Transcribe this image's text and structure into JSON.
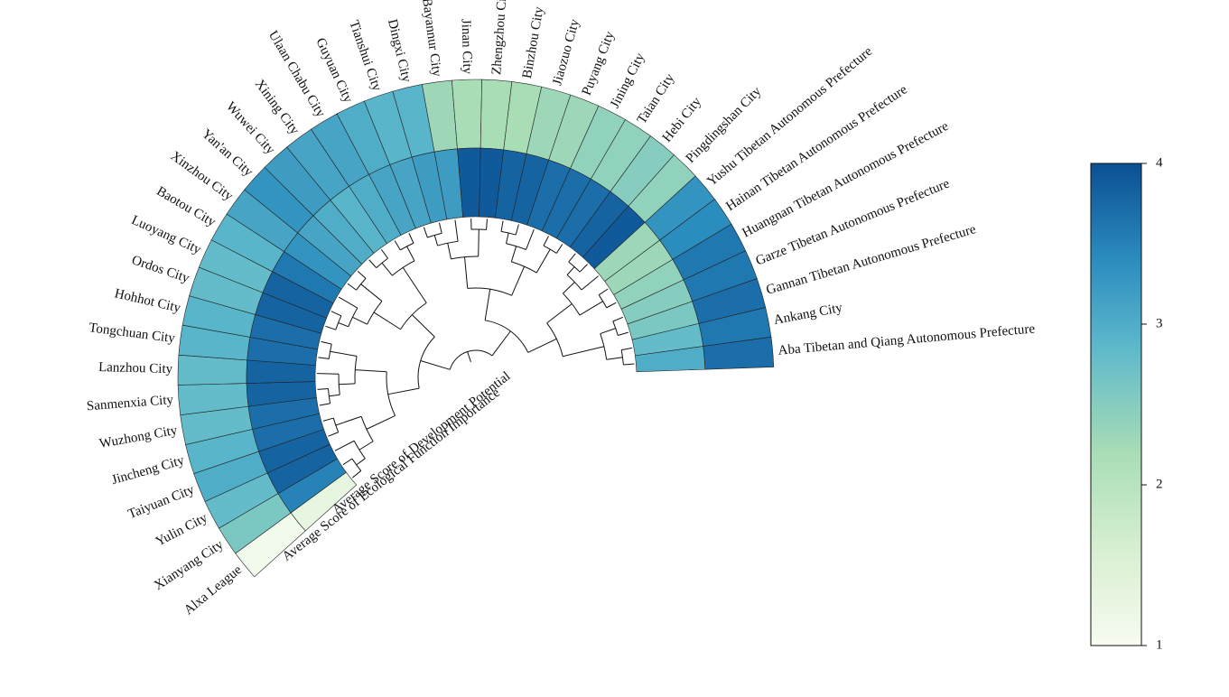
{
  "chart_data": {
    "type": "heatmap",
    "subtype": "circular-dendrogram-heatmap",
    "series": [
      {
        "name": "Average Score of Ecological Function Importance",
        "ring": "outer"
      },
      {
        "name": "Average Score of Development Potential",
        "ring": "inner"
      }
    ],
    "categories": [
      "Alxa League",
      "Xianyang City",
      "Yulin City",
      "Taiyuan City",
      "Jincheng City",
      "Wuzhong City",
      "Sanmenxia City",
      "Lanzhou City",
      "Tongchuan City",
      "Hohhot City",
      "Ordos City",
      "Luoyang City",
      "Baotou City",
      "Xinzhou City",
      "Yan'an City",
      "Wuwei City",
      "Xining City",
      "Ulaan Chabu City",
      "Guyuan City",
      "Tianshui City",
      "Dingxi City",
      "Bayannur City",
      "Jinan City",
      "Zhengzhou City",
      "Binzhou City",
      "Jiaozuo City",
      "Puyang City",
      "Jining City",
      "Taian City",
      "Hebi City",
      "Pingdingshan City",
      "Yushu Tibetan Autonomous Prefecture",
      "Hainan Tibetan Autonomous Prefecture",
      "Huangnan Tibetan Autonomous Prefecture",
      "Garze Tibetan Autonomous Prefecture",
      "Gannan Tibetan Autonomous Prefecture",
      "Ankang City",
      "Aba Tibetan and Qiang Autonomous Prefecture"
    ],
    "values": {
      "Average Score of Ecological Function Importance": [
        1.1,
        2.6,
        2.8,
        3.0,
        2.9,
        2.8,
        2.8,
        2.8,
        2.9,
        2.9,
        2.8,
        2.8,
        2.9,
        3.1,
        3.3,
        3.2,
        3.1,
        3.1,
        3.0,
        2.9,
        2.9,
        2.3,
        2.2,
        2.2,
        2.2,
        2.3,
        2.3,
        2.4,
        2.4,
        2.5,
        2.4,
        3.3,
        3.4,
        3.6,
        3.6,
        3.7,
        3.6,
        3.7
      ],
      "Average Score of Development Potential": [
        1.3,
        3.5,
        3.8,
        3.8,
        3.7,
        3.7,
        3.8,
        3.8,
        3.7,
        3.7,
        3.8,
        3.8,
        3.6,
        3.3,
        3.1,
        3.0,
        2.9,
        3.0,
        3.1,
        3.1,
        3.2,
        3.2,
        3.9,
        3.9,
        3.8,
        3.8,
        3.7,
        3.7,
        3.7,
        3.8,
        3.9,
        2.3,
        2.3,
        2.4,
        2.5,
        2.6,
        2.8,
        3.0
      ]
    },
    "colorbar": {
      "min": 1,
      "max": 4,
      "ticks": [
        1,
        2,
        3,
        4
      ]
    },
    "colormap": [
      "#f7fcf0",
      "#d7efd1",
      "#a8ddb5",
      "#5db8cb",
      "#2b8cbe",
      "#0b4f94"
    ]
  }
}
